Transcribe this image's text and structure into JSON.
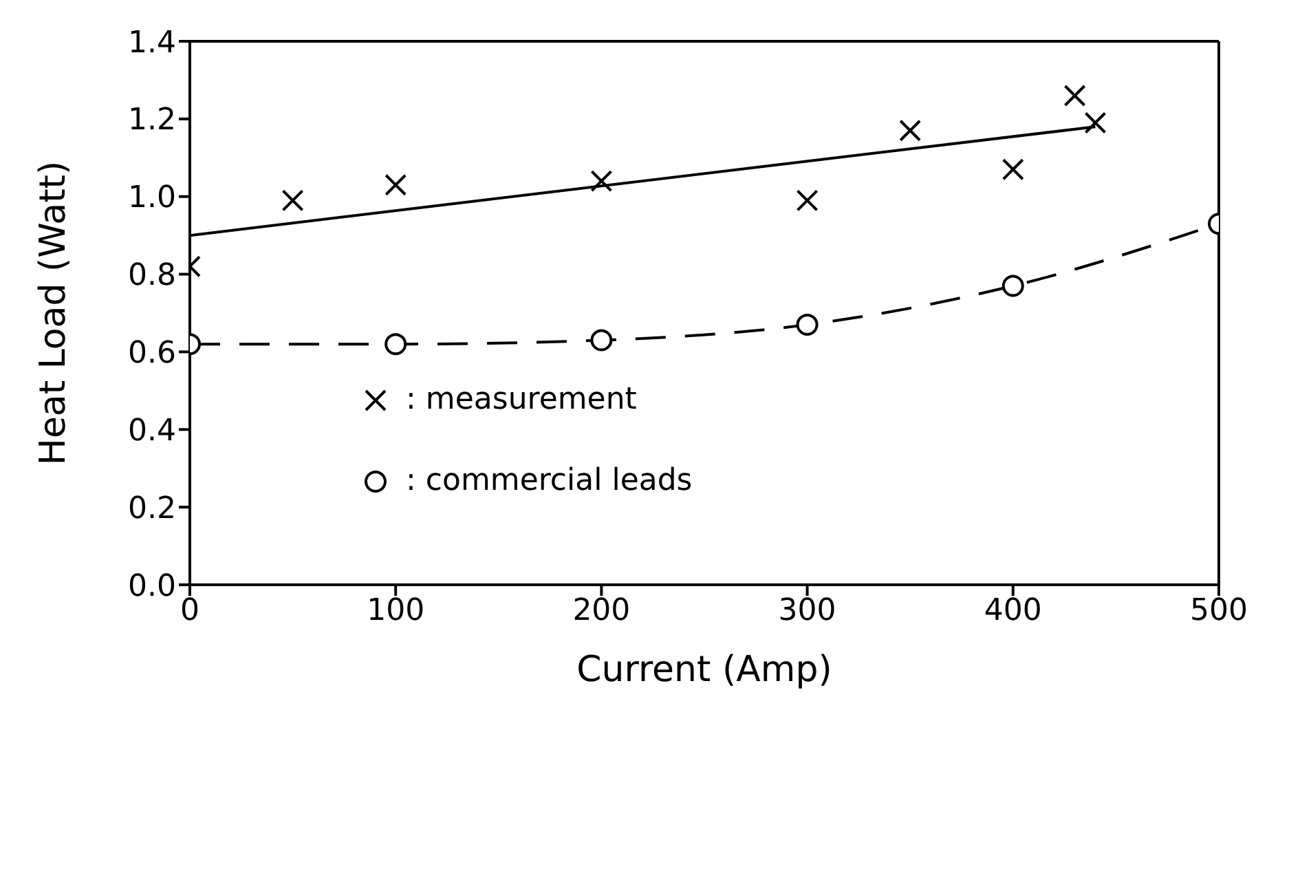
{
  "chart_data": {
    "type": "scatter",
    "xlabel": "Current (Amp)",
    "ylabel": "Heat Load (Watt)",
    "xlim": [
      0,
      500
    ],
    "xticks": [
      0,
      100,
      200,
      300,
      400,
      500
    ],
    "ylim": [
      0,
      1.4
    ],
    "yticks": [
      {
        "value": 0,
        "label": "0.0"
      },
      {
        "value": 0.2,
        "label": "0.2"
      },
      {
        "value": 0.4,
        "label": "0.4"
      },
      {
        "value": 0.6,
        "label": "0.6"
      },
      {
        "value": 0.8,
        "label": "0.8"
      },
      {
        "value": 1,
        "label": "1.0"
      },
      {
        "value": 1.2,
        "label": "1.2"
      },
      {
        "value": 1.4,
        "label": "1.4"
      }
    ],
    "grid": false,
    "legend": "bottom left",
    "series": [
      {
        "name": ": measurement",
        "marker": "cross",
        "color": "#000000",
        "x": [
          0,
          50,
          100,
          200,
          300,
          350,
          400,
          430,
          440
        ],
        "values": [
          0.82,
          0.99,
          1.03,
          1.04,
          0.99,
          1.17,
          1.07,
          1.26,
          1.19
        ]
      },
      {
        "type": "line",
        "marker": "none",
        "line_style": "solid",
        "color": "#000000",
        "x": [
          0,
          440
        ],
        "values": [
          0.9,
          1.18
        ]
      },
      {
        "name": ": commercial leads",
        "type": "line",
        "marker": "circle",
        "line_style": "dashed",
        "color": "#000000",
        "x": [
          0,
          100,
          200,
          300,
          400,
          500
        ],
        "values": [
          0.62,
          0.62,
          0.63,
          0.67,
          0.77,
          0.93
        ]
      }
    ]
  }
}
